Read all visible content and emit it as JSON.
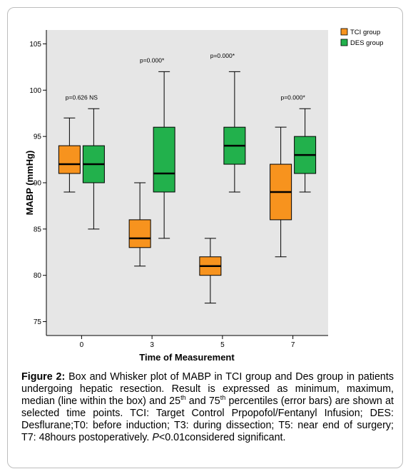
{
  "chart_data": {
    "type": "box",
    "ylabel": "MABP (mmHg)",
    "xlabel": "Time of Measurement",
    "ylim": [
      73.5,
      106.5
    ],
    "yticks": [
      75,
      80,
      85,
      90,
      95,
      100,
      105
    ],
    "categories": [
      "0",
      "3",
      "5",
      "7"
    ],
    "legend_position": "top-right",
    "series": [
      {
        "name": "TCI group",
        "color": "#f7931e",
        "boxes": [
          {
            "min": 89,
            "q1": 91,
            "median": 92,
            "q3": 94,
            "max": 97
          },
          {
            "min": 81,
            "q1": 83,
            "median": 84,
            "q3": 86,
            "max": 90
          },
          {
            "min": 77,
            "q1": 80,
            "median": 81,
            "q3": 82,
            "max": 84
          },
          {
            "min": 82,
            "q1": 86,
            "median": 89,
            "q3": 92,
            "max": 96
          }
        ]
      },
      {
        "name": "DES group",
        "color": "#22b14c",
        "boxes": [
          {
            "min": 85,
            "q1": 90,
            "median": 92,
            "q3": 94,
            "max": 98
          },
          {
            "min": 84,
            "q1": 89,
            "median": 91,
            "q3": 96,
            "max": 102
          },
          {
            "min": 89,
            "q1": 92,
            "median": 94,
            "q3": 96,
            "max": 102
          },
          {
            "min": 89,
            "q1": 91,
            "median": 93,
            "q3": 95,
            "max": 98
          }
        ]
      }
    ],
    "annotations": [
      {
        "category": "0",
        "text": "p=0.626 NS",
        "y": 99
      },
      {
        "category": "3",
        "text": "p=0.000*",
        "y": 103
      },
      {
        "category": "5",
        "text": "p=0.000*",
        "y": 103.5
      },
      {
        "category": "7",
        "text": "p=0.000*",
        "y": 99
      }
    ]
  },
  "caption": {
    "label": "Figure 2:",
    "part1": " Box and Whisker plot of MABP in TCI group and Des group in patients undergoing hepatic resection. Result is expressed as minimum, maximum, median (line within the box) and 25",
    "sup1": "th",
    "part2": " and 75",
    "sup2": "th",
    "part3": " percentiles (error bars) are shown at selected time points. TCI: Target Control Prpopofol/Fentanyl Infusion; DES: Desflurane;T0: before induction; T3: during dissection; T5: near end of surgery; T7: 48hours postoperatively. ",
    "p_italic": "P",
    "part4": "<0.01considered significant."
  }
}
